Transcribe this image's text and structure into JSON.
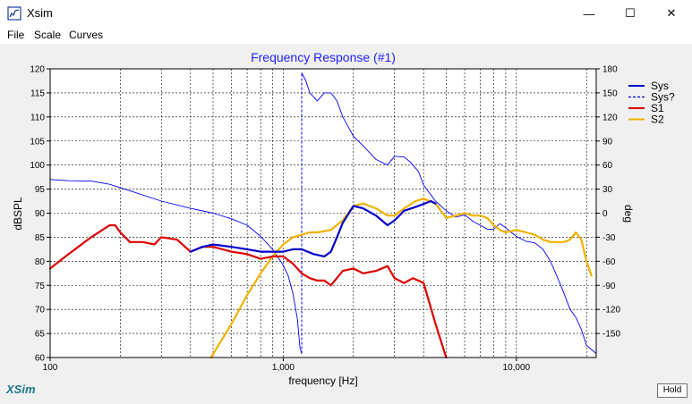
{
  "window": {
    "title": "Xsim",
    "minimize_glyph": "—",
    "maximize_glyph": "☐",
    "close_glyph": "✕"
  },
  "menu": {
    "items": [
      "File",
      "Scale",
      "Curves"
    ]
  },
  "brand": {
    "label": "XSim",
    "color": "#1a7a8a"
  },
  "hold_label": "Hold",
  "colors": {
    "sys": "#0000cc",
    "sys_phase": "#0000ff",
    "s1": "#dd0000",
    "s2": "#f2b200",
    "title": "#1f1fff"
  },
  "chart_data": {
    "type": "line",
    "title": "Frequency Response (#1)",
    "xlabel": "frequency [Hz]",
    "ylabel": "dBSPL",
    "y2label": "deg",
    "x_scale": "log",
    "xlim": [
      100,
      22000
    ],
    "ylim": [
      60,
      120
    ],
    "y2lim": [
      -180,
      180
    ],
    "x_ticks": [
      {
        "v": 100,
        "label": "100"
      },
      {
        "v": 1000,
        "label": "1,000"
      },
      {
        "v": 10000,
        "label": "10,000"
      }
    ],
    "y_ticks": [
      60,
      65,
      70,
      75,
      80,
      85,
      90,
      95,
      100,
      105,
      110,
      115,
      120
    ],
    "y2_ticks": [
      180,
      150,
      120,
      90,
      60,
      30,
      0,
      -30,
      -60,
      -90,
      -120,
      -150
    ],
    "grid": true,
    "legend": {
      "placement": "top-right",
      "entries": [
        {
          "name": "Sys",
          "style": "solid",
          "color": "#0000cc"
        },
        {
          "name": "Sys?",
          "style": "dashed",
          "color": "#0000cc"
        },
        {
          "name": "S1",
          "style": "solid",
          "color": "#dd0000"
        },
        {
          "name": "S2",
          "style": "solid",
          "color": "#f2b200"
        }
      ]
    },
    "series": [
      {
        "name": "Sys",
        "axis": "left",
        "x": [
          400,
          450,
          500,
          600,
          700,
          800,
          900,
          1000,
          1100,
          1200,
          1350,
          1500,
          1600,
          1700,
          1800,
          2000,
          2200,
          2500,
          2800,
          3000,
          3300,
          3800,
          4300,
          4500
        ],
        "y": [
          82,
          83,
          83.5,
          83,
          82.5,
          82,
          82,
          82,
          82.5,
          82.5,
          81.5,
          81,
          82,
          85,
          88,
          91.5,
          91,
          89.5,
          87.5,
          88.5,
          90.5,
          91.5,
          92.5,
          92
        ]
      },
      {
        "name": "Sys?",
        "axis": "right",
        "x": [
          100,
          120,
          150,
          180,
          220,
          300,
          400,
          500,
          600,
          700,
          800,
          900,
          1000,
          1050,
          1100,
          1150,
          1180,
          1200,
          1200,
          1250,
          1300,
          1400,
          1500,
          1600,
          1700,
          1800,
          2000,
          2200,
          2500,
          2800,
          3000,
          3300,
          3500,
          3800,
          4000,
          4500,
          5000,
          5500,
          6000,
          6500,
          7000,
          7500,
          8000,
          8500,
          9000,
          9500,
          10000,
          11000,
          12000,
          13000,
          14000,
          15000,
          16000,
          17000,
          18000,
          19000,
          20000,
          21000,
          22000
        ],
        "y": [
          42,
          40.5,
          40,
          36,
          28,
          15,
          6,
          0,
          -7,
          -15,
          -29,
          -45,
          -65,
          -78,
          -100,
          -132,
          -168,
          -175,
          175,
          165,
          150,
          140,
          150,
          150,
          140,
          120,
          96,
          84,
          67,
          60,
          71,
          70,
          64,
          52,
          35,
          15,
          3,
          -5,
          -2,
          -10,
          -15,
          -20,
          -20,
          -13,
          -18,
          -24,
          -29,
          -35,
          -37,
          -45,
          -60,
          -80,
          -100,
          -120,
          -130,
          -145,
          -165,
          -170,
          -175
        ]
      },
      {
        "name": "S1",
        "axis": "left",
        "x": [
          100,
          120,
          150,
          180,
          190,
          200,
          220,
          250,
          280,
          300,
          350,
          400,
          450,
          500,
          600,
          700,
          800,
          900,
          1000,
          1100,
          1200,
          1300,
          1400,
          1500,
          1600,
          1800,
          2000,
          2200,
          2500,
          2800,
          3000,
          3300,
          3600,
          4000,
          4500,
          5000
        ],
        "y": [
          78.5,
          81.5,
          85,
          87.5,
          87.5,
          86,
          84,
          84,
          83.5,
          85,
          84.5,
          82,
          83,
          83,
          82,
          81.5,
          80.5,
          81,
          81,
          79.5,
          77.5,
          76.5,
          76,
          76,
          75,
          78,
          78.5,
          77.5,
          78,
          79,
          76.5,
          75.5,
          76.5,
          75.5,
          67,
          60
        ]
      },
      {
        "name": "S2",
        "axis": "left",
        "x": [
          490,
          600,
          700,
          800,
          900,
          1000,
          1100,
          1200,
          1300,
          1400,
          1600,
          1800,
          2000,
          2200,
          2500,
          2800,
          3000,
          3300,
          3700,
          4000,
          4500,
          5000,
          5500,
          6000,
          6500,
          7000,
          7500,
          8000,
          8500,
          9000,
          10000,
          11000,
          12000,
          13000,
          14000,
          15000,
          16000,
          17000,
          18000,
          19000,
          20000,
          21000
        ],
        "y": [
          60,
          67,
          73,
          77.5,
          81,
          83.5,
          85,
          85.5,
          86,
          86,
          86.5,
          88.5,
          91.5,
          92,
          91,
          89.5,
          89.5,
          91,
          92.5,
          93,
          92,
          89,
          89.5,
          90,
          89.5,
          89.5,
          89,
          87.5,
          86.5,
          86,
          86.5,
          86,
          85.5,
          84.5,
          84,
          84,
          84,
          84.5,
          86,
          84.5,
          80,
          77
        ]
      }
    ]
  }
}
